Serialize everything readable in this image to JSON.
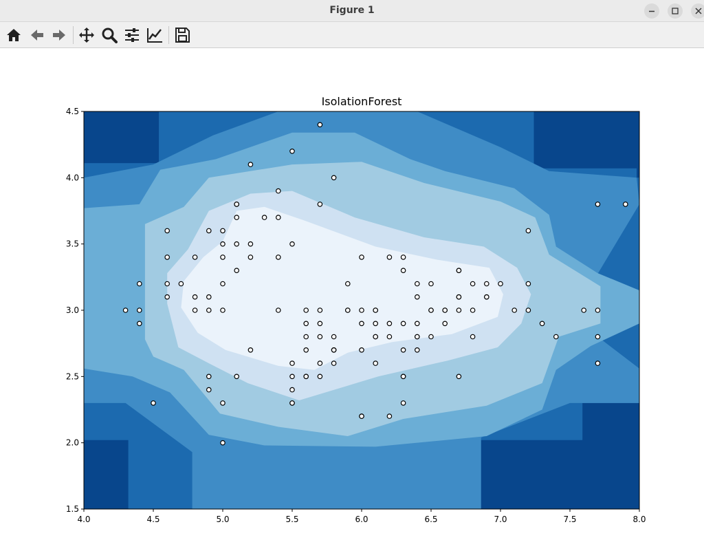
{
  "window": {
    "title": "Figure 1",
    "buttons": [
      "minimize-button",
      "maximize-button",
      "close-button"
    ]
  },
  "toolbar": {
    "tools": [
      {
        "name": "home-icon"
      },
      {
        "name": "back-arrow-icon"
      },
      {
        "name": "forward-arrow-icon"
      },
      {
        "name": "pan-icon"
      },
      {
        "name": "zoom-icon"
      },
      {
        "name": "configure-subplots-icon"
      },
      {
        "name": "edit-axes-icon"
      },
      {
        "name": "save-icon"
      }
    ]
  },
  "chart_data": {
    "type": "heatmap",
    "title": "IsolationForest",
    "xlabel": "",
    "ylabel": "",
    "xlim": [
      4.0,
      8.0
    ],
    "ylim": [
      1.5,
      4.5
    ],
    "xticks": [
      "4.0",
      "4.5",
      "5.0",
      "5.5",
      "6.0",
      "6.5",
      "7.0",
      "7.5",
      "8.0"
    ],
    "yticks": [
      "1.5",
      "2.0",
      "2.5",
      "3.0",
      "3.5",
      "4.0",
      "4.5"
    ],
    "colormap": "Blues",
    "contour_colors": [
      "#08468c",
      "#1c6aaf",
      "#3f8cc6",
      "#6baed6",
      "#a1cbe2",
      "#cfe1f2",
      "#ebf3fb"
    ],
    "grid": false,
    "points": [
      [
        5.1,
        3.5
      ],
      [
        4.9,
        3.0
      ],
      [
        4.7,
        3.2
      ],
      [
        4.6,
        3.1
      ],
      [
        5.0,
        3.6
      ],
      [
        5.4,
        3.9
      ],
      [
        4.6,
        3.4
      ],
      [
        5.0,
        3.4
      ],
      [
        4.4,
        2.9
      ],
      [
        4.9,
        3.1
      ],
      [
        5.4,
        3.7
      ],
      [
        4.8,
        3.4
      ],
      [
        4.8,
        3.0
      ],
      [
        4.3,
        3.0
      ],
      [
        5.8,
        4.0
      ],
      [
        5.7,
        4.4
      ],
      [
        5.1,
        3.8
      ],
      [
        5.7,
        3.8
      ],
      [
        5.4,
        3.4
      ],
      [
        5.1,
        3.7
      ],
      [
        4.6,
        3.6
      ],
      [
        5.1,
        3.3
      ],
      [
        5.0,
        3.0
      ],
      [
        5.2,
        3.5
      ],
      [
        5.2,
        3.4
      ],
      [
        4.8,
        3.1
      ],
      [
        5.2,
        4.1
      ],
      [
        5.5,
        4.2
      ],
      [
        5.5,
        3.5
      ],
      [
        4.4,
        3.0
      ],
      [
        5.0,
        3.5
      ],
      [
        4.5,
        2.3
      ],
      [
        4.4,
        3.2
      ],
      [
        5.1,
        3.8
      ],
      [
        4.6,
        3.2
      ],
      [
        5.3,
        3.7
      ],
      [
        7.0,
        3.2
      ],
      [
        6.4,
        3.2
      ],
      [
        6.9,
        3.1
      ],
      [
        5.5,
        2.3
      ],
      [
        6.5,
        2.8
      ],
      [
        5.7,
        2.8
      ],
      [
        6.3,
        3.3
      ],
      [
        4.9,
        2.4
      ],
      [
        6.6,
        2.9
      ],
      [
        5.2,
        2.7
      ],
      [
        5.0,
        2.0
      ],
      [
        5.9,
        3.0
      ],
      [
        6.0,
        2.2
      ],
      [
        6.1,
        2.9
      ],
      [
        5.6,
        2.9
      ],
      [
        6.7,
        3.1
      ],
      [
        5.6,
        3.0
      ],
      [
        5.8,
        2.7
      ],
      [
        6.2,
        2.2
      ],
      [
        5.6,
        2.5
      ],
      [
        5.9,
        3.2
      ],
      [
        6.1,
        2.8
      ],
      [
        6.3,
        2.5
      ],
      [
        6.4,
        2.9
      ],
      [
        6.6,
        3.0
      ],
      [
        6.8,
        2.8
      ],
      [
        6.7,
        3.0
      ],
      [
        6.0,
        2.9
      ],
      [
        5.7,
        2.6
      ],
      [
        5.5,
        2.4
      ],
      [
        5.8,
        2.7
      ],
      [
        6.0,
        2.7
      ],
      [
        5.4,
        3.0
      ],
      [
        6.0,
        3.4
      ],
      [
        6.7,
        3.1
      ],
      [
        6.3,
        2.3
      ],
      [
        5.5,
        2.5
      ],
      [
        5.5,
        2.6
      ],
      [
        6.1,
        3.0
      ],
      [
        5.8,
        2.6
      ],
      [
        5.0,
        2.3
      ],
      [
        5.6,
        2.7
      ],
      [
        5.7,
        3.0
      ],
      [
        6.2,
        2.9
      ],
      [
        5.1,
        2.5
      ],
      [
        6.3,
        2.9
      ],
      [
        6.5,
        3.0
      ],
      [
        7.6,
        3.0
      ],
      [
        4.9,
        2.5
      ],
      [
        7.3,
        2.9
      ],
      [
        6.7,
        2.5
      ],
      [
        7.2,
        3.6
      ],
      [
        6.5,
        3.2
      ],
      [
        6.4,
        2.7
      ],
      [
        6.8,
        3.0
      ],
      [
        5.7,
        2.5
      ],
      [
        5.8,
        2.8
      ],
      [
        7.7,
        3.8
      ],
      [
        7.7,
        2.6
      ],
      [
        6.0,
        2.2
      ],
      [
        6.9,
        3.2
      ],
      [
        5.6,
        2.8
      ],
      [
        7.7,
        2.8
      ],
      [
        6.3,
        2.7
      ],
      [
        6.7,
        3.3
      ],
      [
        7.2,
        3.2
      ],
      [
        6.2,
        2.8
      ],
      [
        6.1,
        3.0
      ],
      [
        6.4,
        2.8
      ],
      [
        7.2,
        3.0
      ],
      [
        7.4,
        2.8
      ],
      [
        7.9,
        3.8
      ],
      [
        6.4,
        2.8
      ],
      [
        6.1,
        2.6
      ],
      [
        7.7,
        3.0
      ],
      [
        6.3,
        3.4
      ],
      [
        6.4,
        3.1
      ],
      [
        6.0,
        3.0
      ],
      [
        6.9,
        3.1
      ],
      [
        5.8,
        2.7
      ],
      [
        6.8,
        3.2
      ],
      [
        6.7,
        3.3
      ],
      [
        6.3,
        2.5
      ],
      [
        6.5,
        3.0
      ],
      [
        6.2,
        3.4
      ],
      [
        5.9,
        3.0
      ],
      [
        5.7,
        2.9
      ],
      [
        6.1,
        2.8
      ],
      [
        6.6,
        3.0
      ],
      [
        7.1,
        3.0
      ],
      [
        5.6,
        2.5
      ],
      [
        5.5,
        2.3
      ],
      [
        5.0,
        3.2
      ],
      [
        4.9,
        3.6
      ]
    ]
  }
}
